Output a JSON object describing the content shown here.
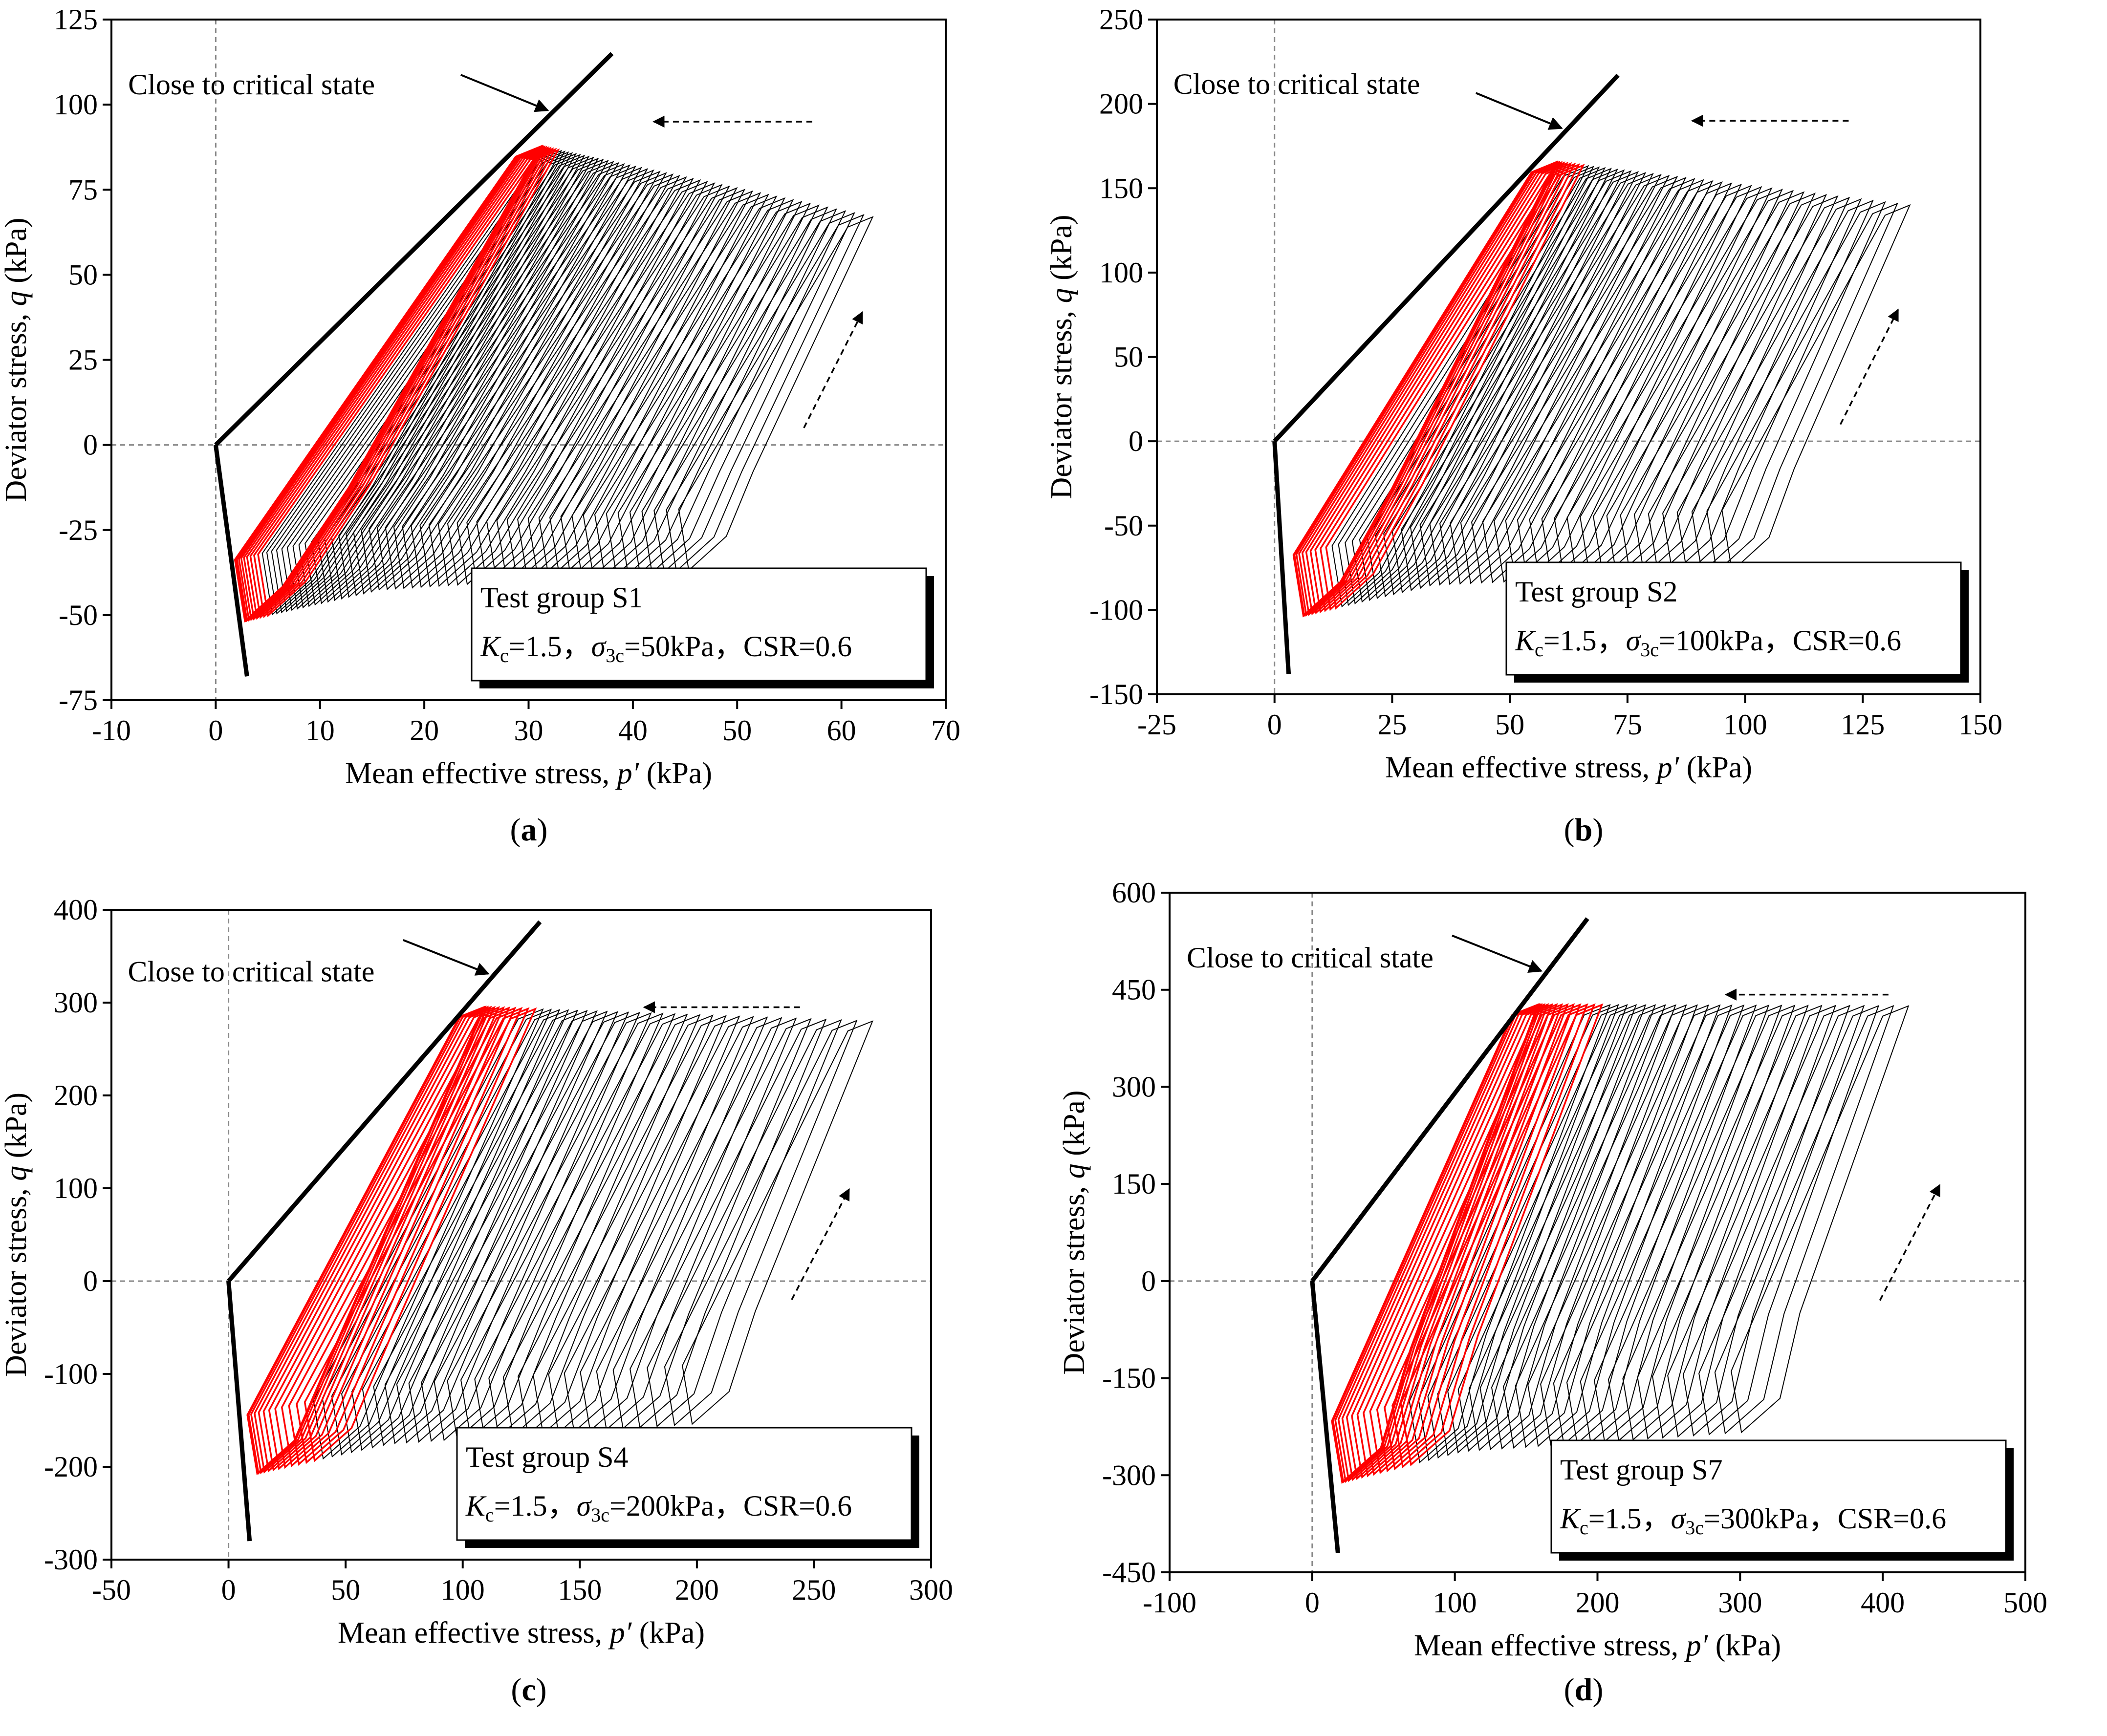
{
  "chart_data": [
    {
      "type": "line",
      "panel_label": "a",
      "xlabel_prefix": "Mean effective stress, ",
      "xlabel_var": "p′",
      "xlabel_suffix": " (kPa)",
      "ylabel_prefix": "Deviator stress, ",
      "ylabel_var": "q",
      "ylabel_suffix": " (kPa)",
      "xlim": [
        -10,
        70
      ],
      "ylim": [
        -75,
        125
      ],
      "xticks": [
        -10,
        0,
        10,
        20,
        30,
        40,
        50,
        60,
        70
      ],
      "yticks": [
        -75,
        -50,
        -25,
        0,
        25,
        50,
        75,
        100,
        125
      ],
      "annotation": "Close to critical state",
      "legend_title": "Test group S1",
      "legend_params": {
        "Kc": "1.5",
        "sigma3c": "50kPa",
        "CSR": "0.6"
      },
      "critical_state_line_compression": {
        "x": [
          0,
          38
        ],
        "y": [
          0,
          115
        ]
      },
      "critical_state_line_extension": {
        "x": [
          0,
          3
        ],
        "y": [
          0,
          -68
        ]
      },
      "initial_p": 63,
      "initial_q": 67,
      "cycles": 58,
      "red_cycles": 10
    },
    {
      "type": "line",
      "panel_label": "b",
      "xlabel_prefix": "Mean effective stress, ",
      "xlabel_var": "p′",
      "xlabel_suffix": " (kPa)",
      "ylabel_prefix": "Deviator stress, ",
      "ylabel_var": "q",
      "ylabel_suffix": " (kPa)",
      "xlim": [
        -25,
        150
      ],
      "ylim": [
        -150,
        250
      ],
      "xticks": [
        -25,
        0,
        25,
        50,
        75,
        100,
        125,
        150
      ],
      "yticks": [
        -150,
        -100,
        -50,
        0,
        50,
        100,
        150,
        200,
        250
      ],
      "annotation": "Close to critical state",
      "legend_title": "Test group S2",
      "legend_params": {
        "Kc": "1.5",
        "sigma3c": "100kPa",
        "CSR": "0.6"
      },
      "critical_state_line_compression": {
        "x": [
          0,
          73
        ],
        "y": [
          0,
          217
        ]
      },
      "critical_state_line_extension": {
        "x": [
          0,
          3
        ],
        "y": [
          0,
          -138
        ]
      },
      "initial_p": 135,
      "initial_q": 140,
      "cycles": 46,
      "red_cycles": 10
    },
    {
      "type": "line",
      "panel_label": "c",
      "xlabel_prefix": "Mean effective stress, ",
      "xlabel_var": "p′",
      "xlabel_suffix": " (kPa)",
      "ylabel_prefix": "Deviator stress, ",
      "ylabel_var": "q",
      "ylabel_suffix": " (kPa)",
      "xlim": [
        -50,
        300
      ],
      "ylim": [
        -300,
        400
      ],
      "xticks": [
        -50,
        0,
        50,
        100,
        150,
        200,
        250,
        300
      ],
      "yticks": [
        -300,
        -200,
        -100,
        0,
        100,
        200,
        300,
        400
      ],
      "annotation": "Close to critical state",
      "legend_title": "Test group S4",
      "legend_params": {
        "Kc": "1.5",
        "sigma3c": "200kPa",
        "CSR": "0.6"
      },
      "critical_state_line_compression": {
        "x": [
          0,
          133
        ],
        "y": [
          0,
          387
        ]
      },
      "critical_state_line_extension": {
        "x": [
          0,
          9
        ],
        "y": [
          0,
          -280
        ]
      },
      "initial_p": 275,
      "initial_q": 280,
      "cycles": 40,
      "red_cycles": 12
    },
    {
      "type": "line",
      "panel_label": "d",
      "xlabel_prefix": "Mean effective stress, ",
      "xlabel_var": "p′",
      "xlabel_suffix": " (kPa)",
      "ylabel_prefix": "Deviator stress, ",
      "ylabel_var": "q",
      "ylabel_suffix": " (kPa)",
      "xlim": [
        -100,
        500
      ],
      "ylim": [
        -450,
        600
      ],
      "xticks": [
        -100,
        0,
        100,
        200,
        300,
        400,
        500
      ],
      "yticks": [
        -450,
        -300,
        -150,
        0,
        150,
        300,
        450,
        600
      ],
      "annotation": "Close to critical state",
      "legend_title": "Test group S7",
      "legend_params": {
        "Kc": "1.5",
        "sigma3c": "300kPa",
        "CSR": "0.6"
      },
      "critical_state_line_compression": {
        "x": [
          0,
          193
        ],
        "y": [
          0,
          560
        ]
      },
      "critical_state_line_extension": {
        "x": [
          0,
          18
        ],
        "y": [
          0,
          -420
        ]
      },
      "initial_p": 418,
      "initial_q": 425,
      "cycles": 40,
      "red_cycles": 14
    }
  ],
  "colors": {
    "red": "#ff0000",
    "black": "#000000",
    "guide": "#888888"
  }
}
